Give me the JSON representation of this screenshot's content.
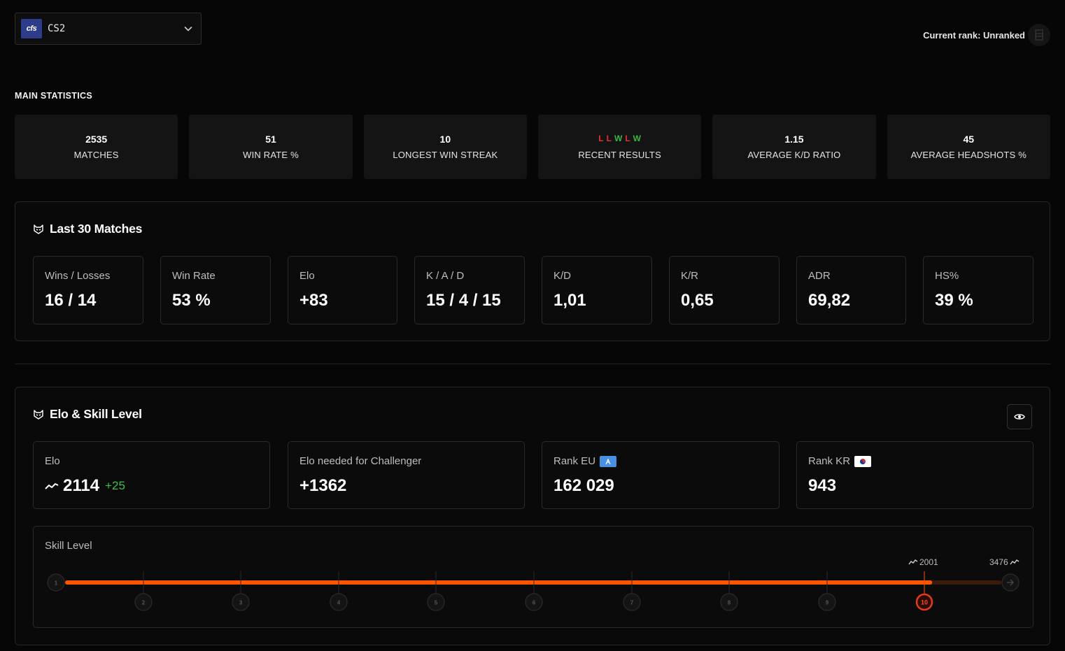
{
  "header": {
    "game_logo_text": "cfs",
    "game_name": "CS2",
    "current_rank_label": "Current rank: Unranked"
  },
  "main_statistics": {
    "title": "MAIN STATISTICS",
    "items": [
      {
        "value": "2535",
        "label": "MATCHES"
      },
      {
        "value": "51",
        "label": "WIN RATE %"
      },
      {
        "value": "10",
        "label": "LONGEST WIN STREAK"
      },
      {
        "value": "",
        "label": "RECENT RESULTS"
      },
      {
        "value": "1.15",
        "label": "AVERAGE K/D RATIO"
      },
      {
        "value": "45",
        "label": "AVERAGE HEADSHOTS %"
      }
    ],
    "recent_results": [
      "L",
      "L",
      "W",
      "L",
      "W"
    ]
  },
  "last30": {
    "title": "Last 30 Matches",
    "cards": [
      {
        "label": "Wins / Losses",
        "value": "16 / 14"
      },
      {
        "label": "Win Rate",
        "value": "53 %"
      },
      {
        "label": "Elo",
        "value": "+83"
      },
      {
        "label": "K / A / D",
        "value": "15 / 4 / 15"
      },
      {
        "label": "K/D",
        "value": "1,01"
      },
      {
        "label": "K/R",
        "value": "0,65"
      },
      {
        "label": "ADR",
        "value": "69,82"
      },
      {
        "label": "HS%",
        "value": "39 %"
      }
    ]
  },
  "elo_section": {
    "title": "Elo & Skill Level",
    "elo": {
      "label": "Elo",
      "value": "2114",
      "delta": "+25"
    },
    "challenger": {
      "label": "Elo needed for Challenger",
      "value": "+1362"
    },
    "rank_eu": {
      "label": "Rank EU",
      "value": "162 029"
    },
    "rank_kr": {
      "label": "Rank KR",
      "value": "943"
    },
    "skill": {
      "title": "Skill Level",
      "current_level": 10,
      "levels": [
        "1",
        "2",
        "3",
        "4",
        "5",
        "6",
        "7",
        "8",
        "9",
        "10"
      ],
      "level10_threshold": "2001",
      "challenger_threshold": "3476",
      "progress_elo": 2114,
      "accent": "#ff5500"
    }
  },
  "colors": {
    "loss": "#e23232",
    "win": "#39b54a",
    "accent": "#ff5500"
  }
}
